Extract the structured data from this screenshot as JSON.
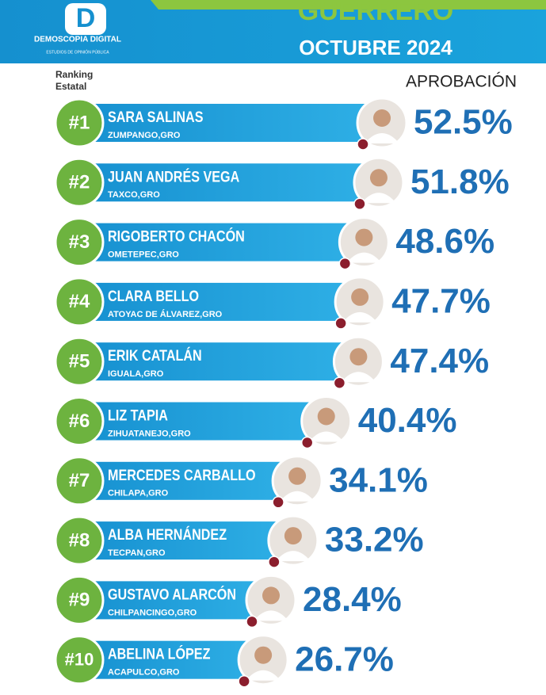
{
  "brand": {
    "name": "DEMOSCOPIA DIGITAL",
    "tagline": "ESTUDIOS DE OPINIÓN PÚBLICA"
  },
  "chart_data": {
    "type": "bar",
    "orientation": "horizontal",
    "title": "GUERRERO",
    "subtitle": "OCTUBRE 2024",
    "rank_label": [
      "Ranking",
      "Estatal"
    ],
    "value_axis_label": "APROBACIÓN",
    "ranks": [
      "#1",
      "#2",
      "#3",
      "#4",
      "#5",
      "#6",
      "#7",
      "#8",
      "#9",
      "#10"
    ],
    "categories": [
      "SARA SALINAS",
      "JUAN ANDRÉS VEGA",
      "RIGOBERTO CHACÓN",
      "CLARA BELLO",
      "ERIK CATALÁN",
      "LIZ TAPIA",
      "MERCEDES CARBALLO",
      "ALBA HERNÁNDEZ",
      "GUSTAVO ALARCÓN",
      "ABELINA LÓPEZ"
    ],
    "locations": [
      "ZUMPANGO,GRO",
      "TAXCO,GRO",
      "OMETEPEC,GRO",
      "ATOYAC DE ÁLVAREZ,GRO",
      "IGUALA,GRO",
      "ZIHUATANEJO,GRO",
      "CHILAPA,GRO",
      "TECPAN,GRO",
      "CHILPANCINGO,GRO",
      "ACAPULCO,GRO"
    ],
    "values": [
      52.5,
      51.8,
      48.6,
      47.7,
      47.4,
      40.4,
      34.1,
      33.2,
      28.4,
      26.7
    ],
    "value_labels": [
      "52.5%",
      "51.8%",
      "48.6%",
      "47.7%",
      "47.4%",
      "40.4%",
      "34.1%",
      "33.2%",
      "28.4%",
      "26.7%"
    ],
    "color": "#1a9ad6",
    "rank_color": "#6db33f",
    "value_color": "#1f6fb5"
  }
}
